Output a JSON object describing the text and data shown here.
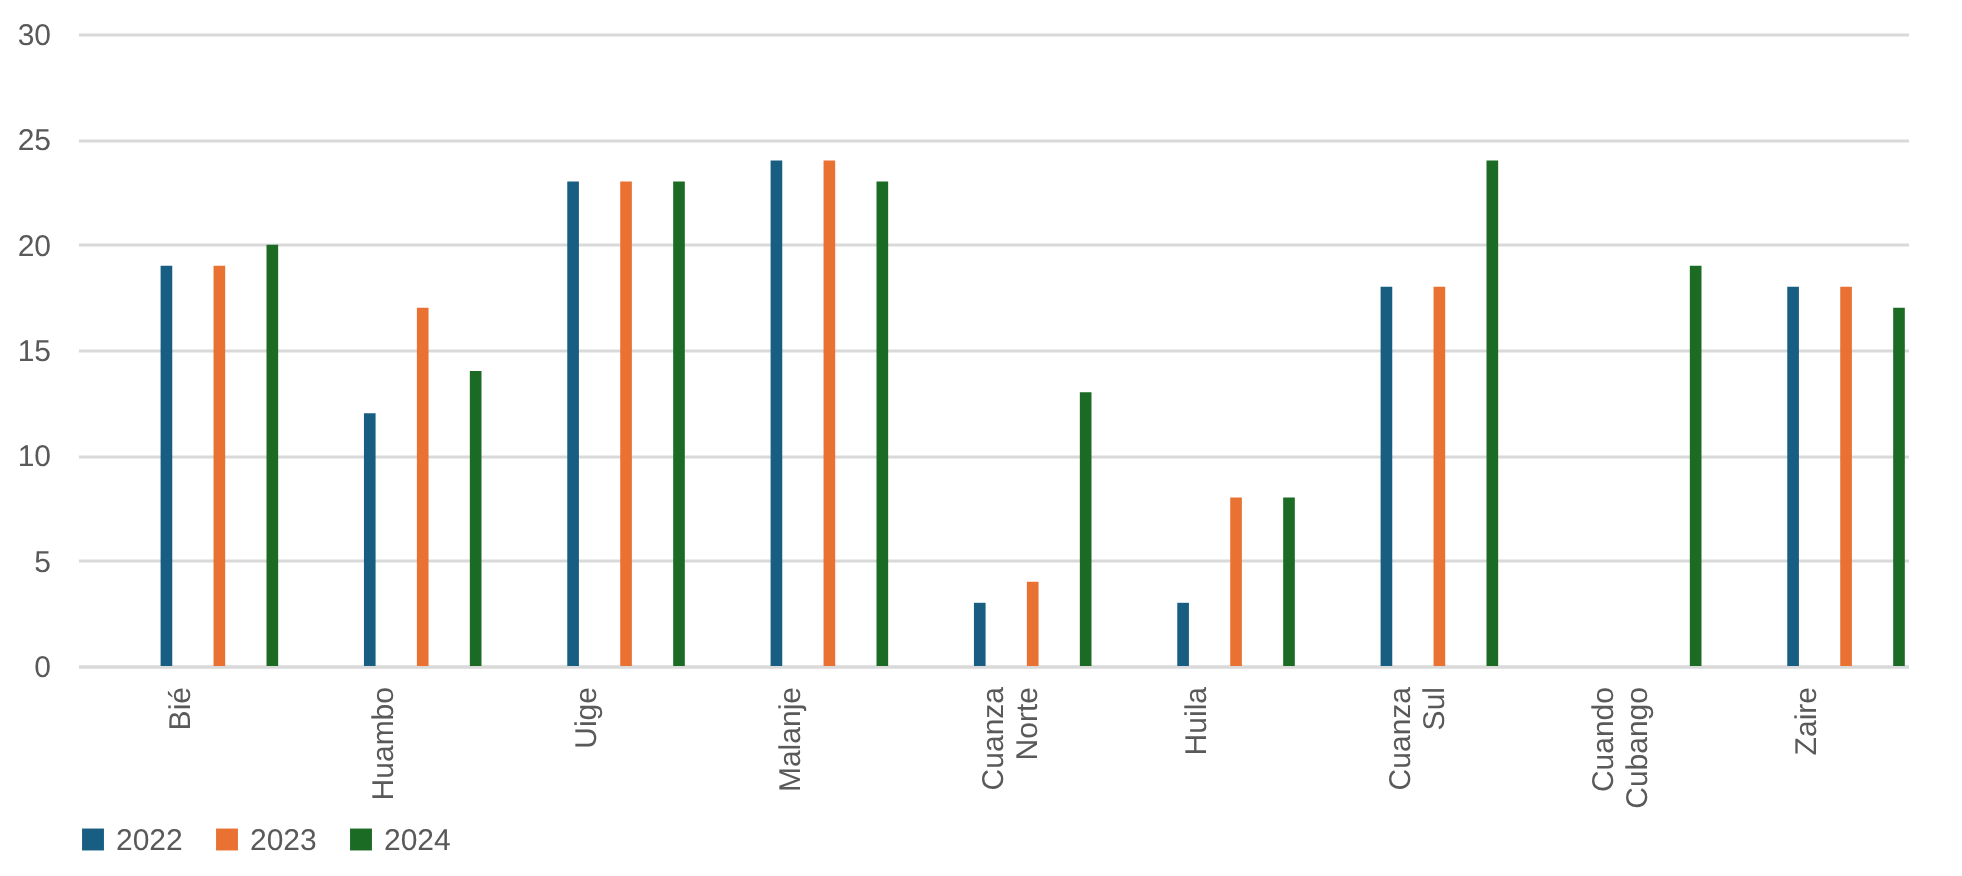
{
  "chart_data": {
    "type": "bar",
    "categories": [
      "Bié",
      "Huambo",
      "Uige",
      "Malanje",
      "Cuanza Norte",
      "Huila",
      "Cuanza Sul",
      "Cuando Cubango",
      "Zaire"
    ],
    "series": [
      {
        "name": "2022",
        "color": "#175e82",
        "values": [
          19,
          12,
          23,
          24,
          3,
          3,
          18,
          null,
          18
        ]
      },
      {
        "name": "2023",
        "color": "#e97132",
        "values": [
          19,
          17,
          23,
          24,
          4,
          8,
          18,
          null,
          18
        ]
      },
      {
        "name": "2024",
        "color": "#1b6b25",
        "values": [
          20,
          14,
          23,
          23,
          13,
          8,
          24,
          19,
          17
        ]
      }
    ],
    "ylim": [
      0,
      30
    ],
    "yticks": [
      0,
      5,
      10,
      15,
      20,
      25,
      30
    ],
    "grid": "y",
    "legend": "bottom"
  }
}
